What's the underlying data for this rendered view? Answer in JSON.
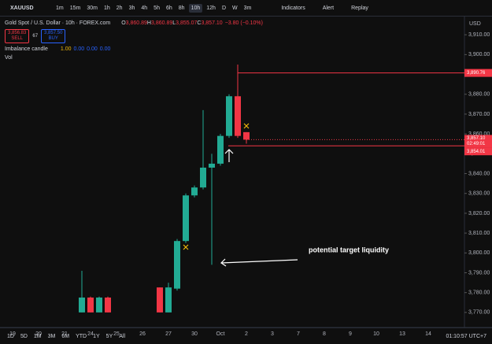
{
  "toolbar": {
    "symbol": "XAUUSD",
    "intervals": [
      "1m",
      "15m",
      "30m",
      "1h",
      "2h",
      "3h",
      "4h",
      "5h",
      "6h",
      "8h",
      "10h",
      "12h",
      "D",
      "W",
      "3m"
    ],
    "active_interval": "10h",
    "buttons": [
      "Indicators",
      "Alert",
      "Replay"
    ]
  },
  "legend": {
    "title": "Gold Spot / U.S. Dollar · 10h · FOREX.com",
    "ohlc": [
      {
        "key": "O",
        "value": "3,860.89"
      },
      {
        "key": "H",
        "value": "3,860.89"
      },
      {
        "key": "L",
        "value": "3,855.07"
      },
      {
        "key": "C",
        "value": "3,857.10"
      }
    ],
    "change": "−3.80 (−0.10%)",
    "sell": {
      "price": "3,856.83",
      "label": "SELL"
    },
    "spread": "67",
    "buy": {
      "price": "3,857.50",
      "label": "BUY"
    },
    "indicator": {
      "name": "Imbalance candle",
      "values": [
        "1.00",
        "0.00",
        "0.00",
        "0.00"
      ]
    },
    "volume": "Vol"
  },
  "chart_data": {
    "type": "candlestick",
    "up_color": "#22ab94",
    "down_color": "#f23645",
    "candles": [
      {
        "o": 3770,
        "h": 3791,
        "l": 3770,
        "c": 3777.5
      },
      {
        "o": 3777.5,
        "h": 3778,
        "l": 3770,
        "c": 3770
      },
      {
        "o": 3770,
        "h": 3778,
        "l": 3770,
        "c": 3777.5
      },
      {
        "o": 3777.5,
        "h": 3778,
        "l": 3770,
        "c": 3770
      },
      null,
      null,
      null,
      null,
      null,
      {
        "o": 3782.6,
        "h": 3782.6,
        "l": 3770,
        "c": 3770
      },
      {
        "o": 3770,
        "h": 3785,
        "l": 3770,
        "c": 3782.6
      },
      {
        "o": 3782,
        "h": 3807,
        "l": 3781,
        "c": 3806
      },
      {
        "o": 3806,
        "h": 3830,
        "l": 3805,
        "c": 3829
      },
      {
        "o": 3829,
        "h": 3834,
        "l": 3828,
        "c": 3833
      },
      {
        "o": 3833,
        "h": 3872,
        "l": 3832,
        "c": 3843
      },
      {
        "o": 3843,
        "h": 3850,
        "l": 3794,
        "c": 3845
      },
      {
        "o": 3845,
        "h": 3860,
        "l": 3844,
        "c": 3859
      },
      {
        "o": 3859,
        "h": 3880,
        "l": 3858,
        "c": 3879
      },
      {
        "o": 3879,
        "h": 3895,
        "l": 3858,
        "c": 3859
      },
      {
        "o": 3860.89,
        "h": 3860.89,
        "l": 3855.07,
        "c": 3857.1
      }
    ],
    "ylim": [
      3764,
      3918
    ],
    "yticks": [
      {
        "value": 3770,
        "label": "3,770.00"
      },
      {
        "value": 3780,
        "label": "3,780.00"
      },
      {
        "value": 3790,
        "label": "3,790.00"
      },
      {
        "value": 3800,
        "label": "3,800.00"
      },
      {
        "value": 3810,
        "label": "3,810.00"
      },
      {
        "value": 3820,
        "label": "3,820.00"
      },
      {
        "value": 3830,
        "label": "3,830.00"
      },
      {
        "value": 3840,
        "label": "3,840.00"
      },
      {
        "value": 3850,
        "label": "3,850.00"
      },
      {
        "value": 3860,
        "label": "3,860.00"
      },
      {
        "value": 3870,
        "label": "3,870.00"
      },
      {
        "value": 3880,
        "label": "3,880.00"
      },
      {
        "value": 3890,
        "label": "3,890.00"
      },
      {
        "value": 3900,
        "label": "3,900.00"
      },
      {
        "value": 3910,
        "label": "3,910.00"
      }
    ],
    "currency": "USD",
    "x_labels": [
      "19",
      "20",
      "21",
      "24",
      "25",
      "26",
      "27",
      "30",
      "Oct",
      "2",
      "3",
      "7",
      "8",
      "9",
      "10",
      "13",
      "14"
    ],
    "levels": [
      {
        "value": 3890.76,
        "label": "3,890.76"
      },
      {
        "value": 3854.01,
        "label": "3,854.01"
      }
    ],
    "last_price": {
      "value": 3857.1,
      "label": "3,857.10",
      "countdown": "02:49:01"
    },
    "annotation": "potential target liquidity"
  },
  "bottom_bar": {
    "ranges": [
      "1D",
      "5D",
      "1M",
      "3M",
      "6M",
      "YTD",
      "1Y",
      "5Y",
      "All"
    ],
    "time": "01:10:57 UTC+7"
  }
}
